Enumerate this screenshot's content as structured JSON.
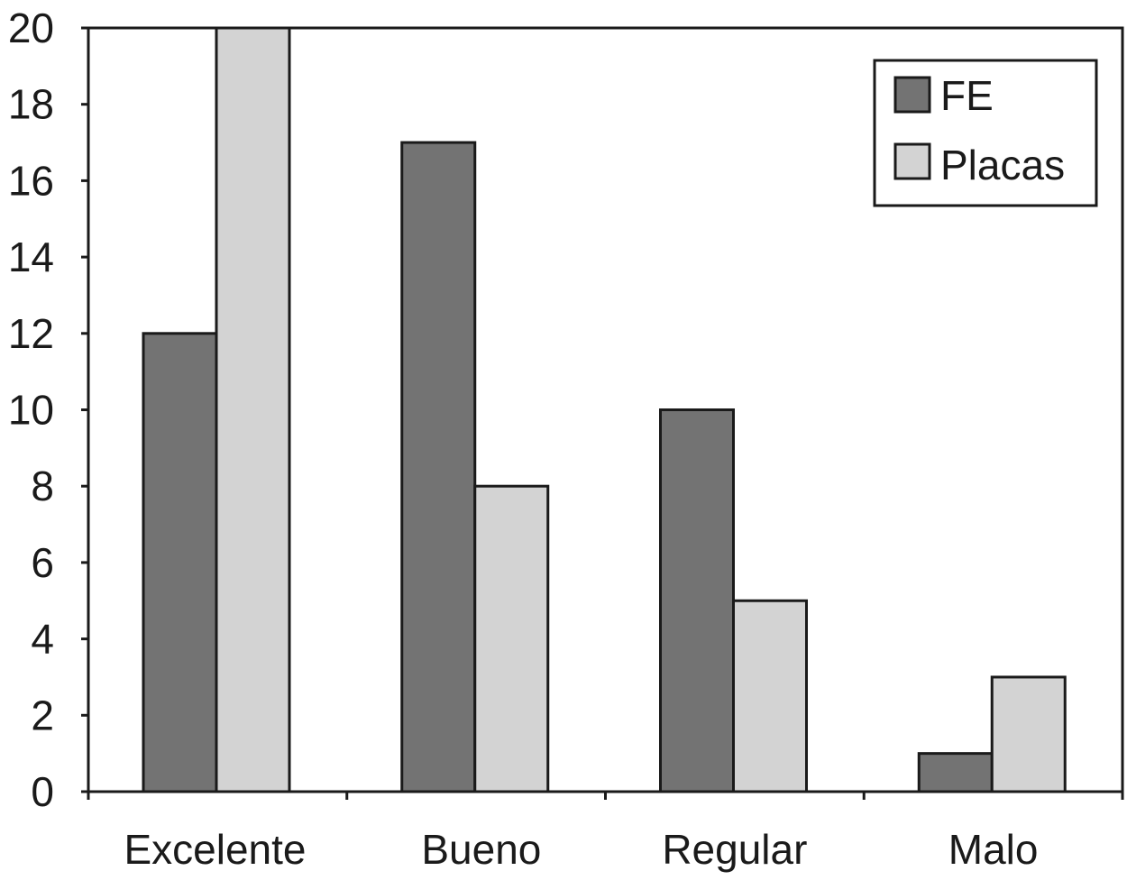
{
  "chart_data": {
    "type": "bar",
    "categories": [
      "Excelente",
      "Bueno",
      "Regular",
      "Malo"
    ],
    "series": [
      {
        "name": "FE",
        "values": [
          12,
          17,
          10,
          1
        ],
        "color": "#737373"
      },
      {
        "name": "Placas",
        "values": [
          20,
          8,
          5,
          3
        ],
        "color": "#d3d3d3"
      }
    ],
    "ylim": [
      0,
      20
    ],
    "yticks": [
      0,
      2,
      4,
      6,
      8,
      10,
      12,
      14,
      16,
      18,
      20
    ],
    "grid": false,
    "legend_position": "top-right",
    "xlabel": "",
    "ylabel": "",
    "title": ""
  }
}
